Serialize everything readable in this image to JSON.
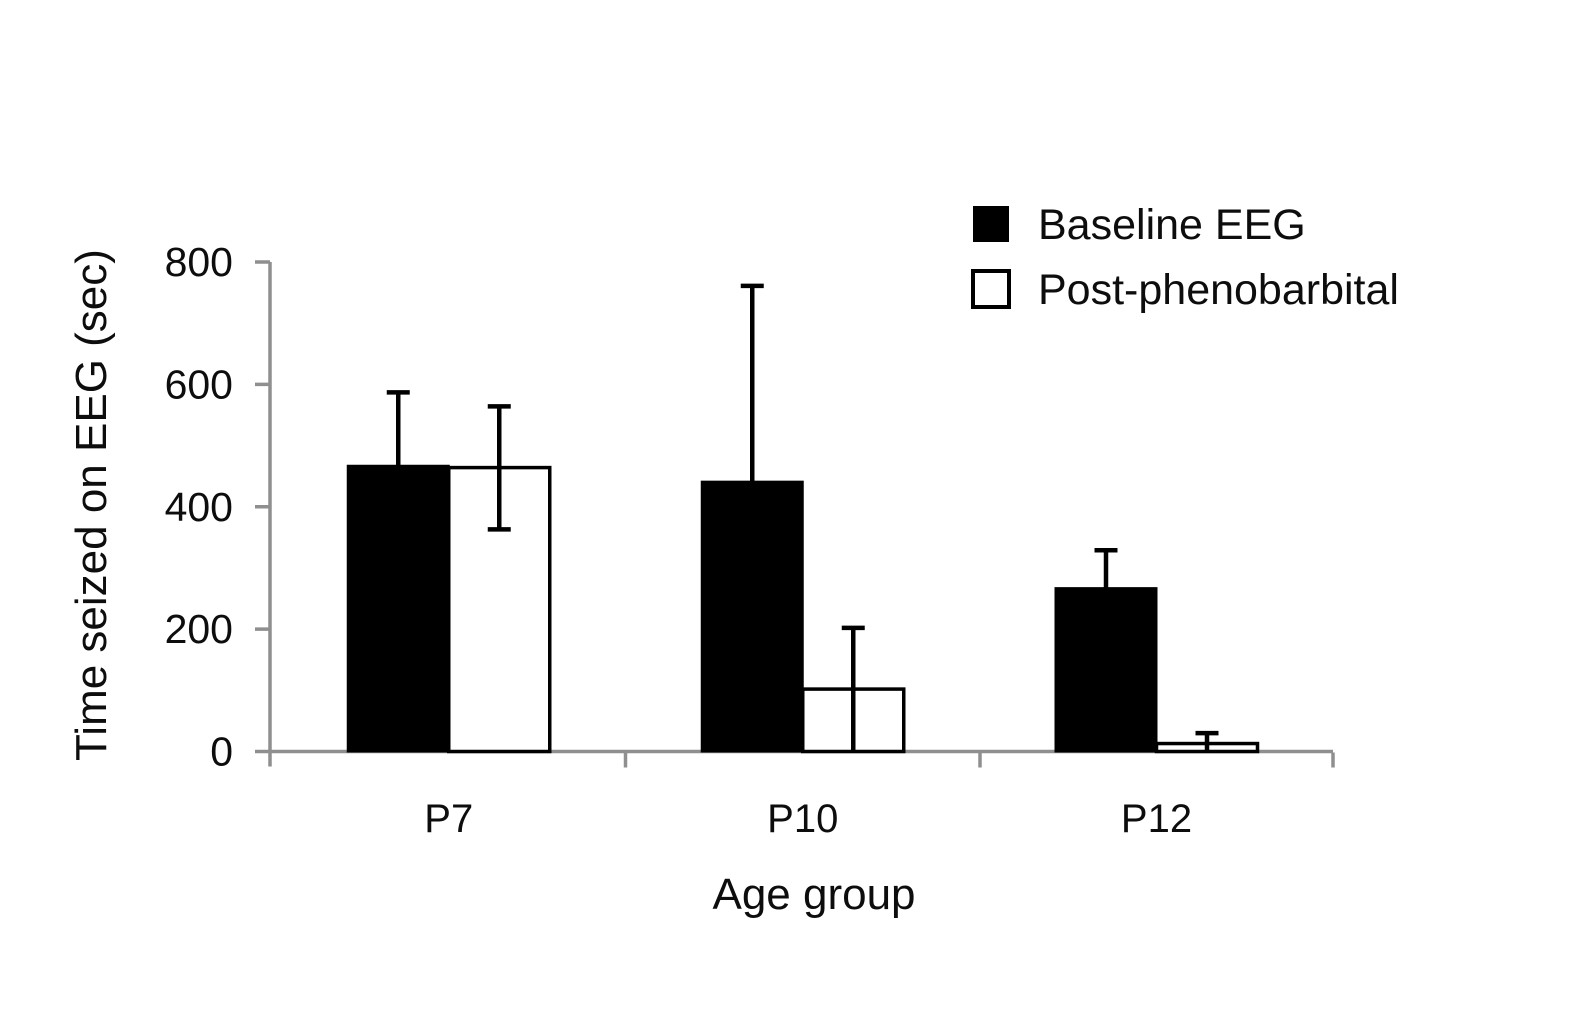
{
  "page": {
    "background": "#ffffff"
  },
  "chart_data": {
    "type": "bar",
    "title": "",
    "xlabel": "Age group",
    "ylabel": "Time seized on EEG (sec)",
    "categories": [
      "P7",
      "P10",
      "P12"
    ],
    "series": [
      {
        "name": "Baseline EEG",
        "fill": "#000000",
        "stroke": "#000000",
        "values": [
          467,
          441,
          267
        ],
        "err_up": [
          120,
          320,
          62
        ],
        "err_down": [
          0,
          0,
          0
        ]
      },
      {
        "name": "Post-phenobarbital",
        "fill": "#ffffff",
        "stroke": "#000000",
        "values": [
          464,
          102,
          13
        ],
        "err_up": [
          100,
          100,
          17
        ],
        "err_down": [
          101,
          102,
          13
        ]
      }
    ],
    "y_ticks": [
      0,
      200,
      400,
      600,
      800
    ],
    "ylim": [
      0,
      800
    ],
    "grid": false,
    "legend_position": "top-right",
    "error_bars": true
  },
  "styles": {
    "axis_color": "#8f8f8f",
    "text_color": "#0d0d0d",
    "error_bar_color": "#000000",
    "background": "#ffffff"
  }
}
